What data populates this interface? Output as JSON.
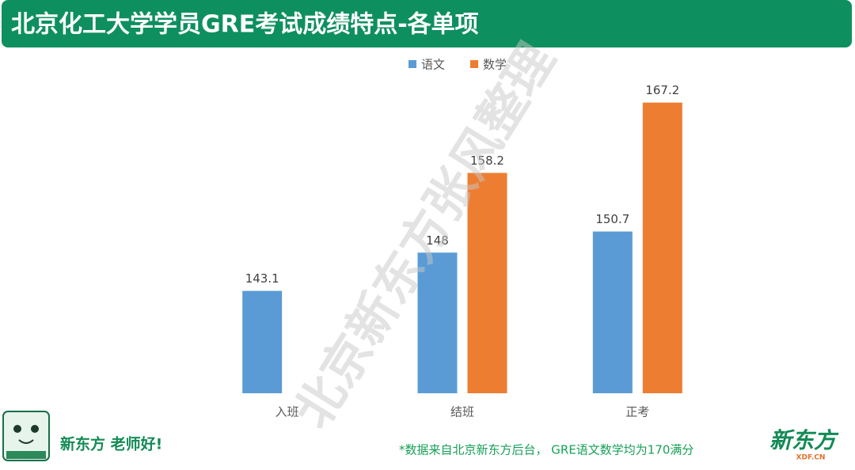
{
  "header": {
    "title": "北京化工大学学员GRE考试成绩特点-各单项"
  },
  "chart_data": {
    "type": "bar",
    "categories": [
      "入班",
      "结班",
      "正考"
    ],
    "series": [
      {
        "name": "语文",
        "color": "#5b9bd5",
        "values": [
          143.1,
          148,
          150.7
        ]
      },
      {
        "name": "数学",
        "color": "#ed7d31",
        "values": [
          null,
          158.2,
          167.2
        ]
      }
    ],
    "ylim": [
      130,
      170
    ],
    "legend": "top"
  },
  "watermark": "北京新东方张风整理",
  "footer": {
    "slogan": "新东方 老师好!",
    "note": "*数据来自北京新东方后台， GRE语文数学均为170满分",
    "logo": "新东方",
    "logo_sub": "XDF.CN"
  }
}
